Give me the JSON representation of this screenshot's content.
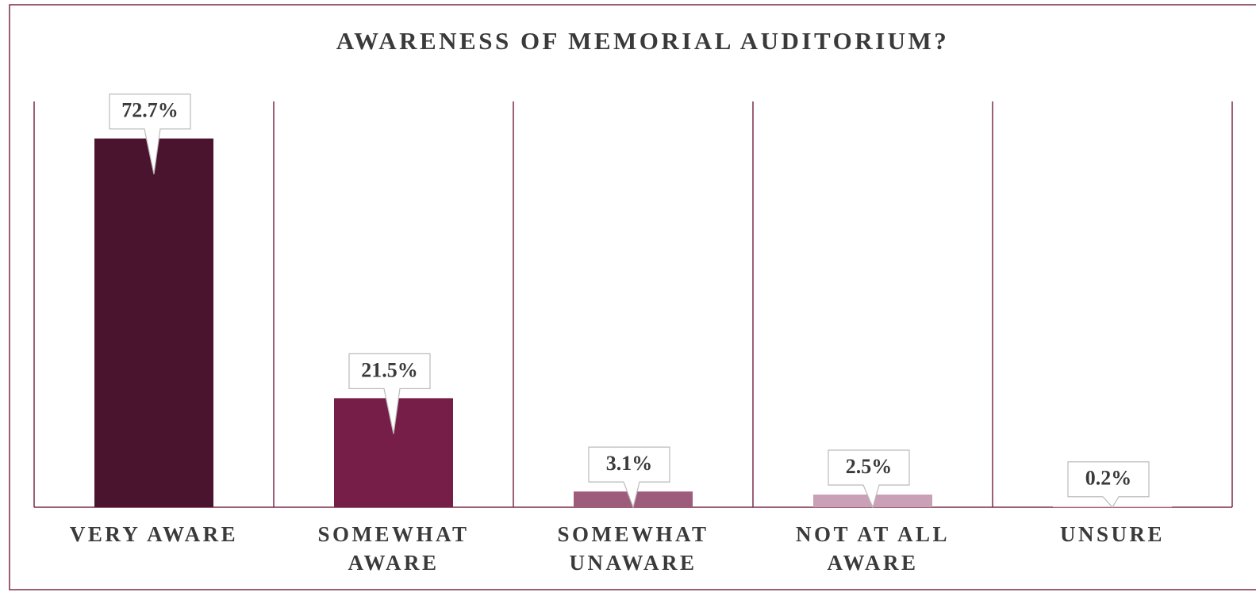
{
  "chart_data": {
    "type": "bar",
    "title": "AWARENESS OF MEMORIAL AUDITORIUM?",
    "categories": [
      "VERY AWARE",
      "SOMEWHAT AWARE",
      "SOMEWHAT UNAWARE",
      "NOT AT ALL AWARE",
      "UNSURE"
    ],
    "values": [
      72.7,
      21.5,
      3.1,
      2.5,
      0.2
    ],
    "value_labels": [
      "72.7%",
      "21.5%",
      "3.1%",
      "2.5%",
      "0.2%"
    ],
    "colors": [
      "#4a142e",
      "#771e48",
      "#9e5c7d",
      "#c9a0b6",
      "#e2c9d5"
    ],
    "ylim": [
      0,
      80
    ]
  }
}
